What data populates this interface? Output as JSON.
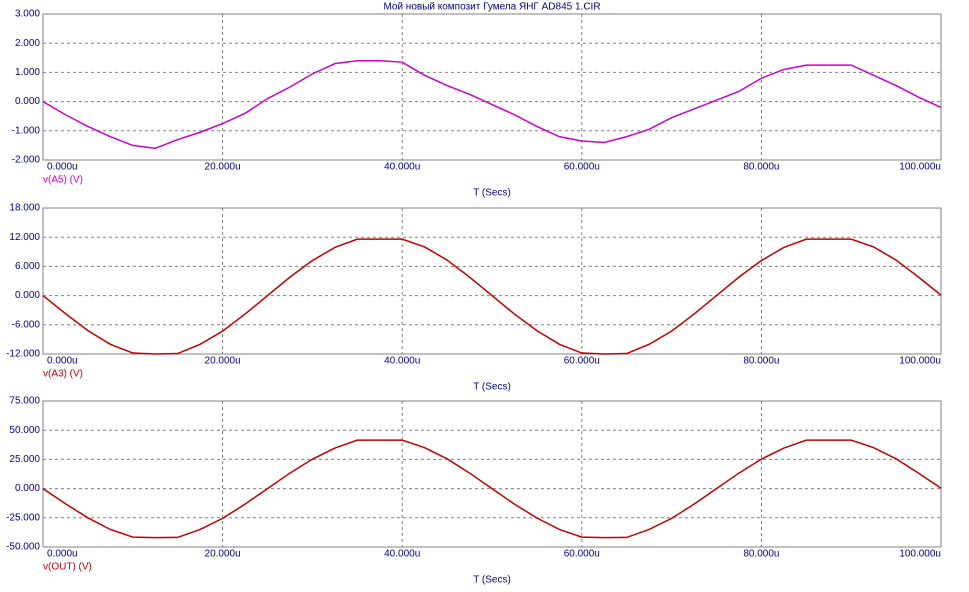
{
  "chart_data": [
    {
      "type": "line",
      "title": "Мой новый композит Гумела ЯНГ AD845 1.CIR",
      "xlabel": "T (Secs)",
      "x": [
        0,
        2.5,
        5,
        7.5,
        10,
        12.5,
        15,
        17.5,
        20,
        22.5,
        25,
        27.5,
        30,
        32.5,
        35,
        37.5,
        40,
        42.5,
        45,
        47.5,
        50,
        52.5,
        55,
        57.5,
        60,
        62.5,
        65,
        67.5,
        70,
        72.5,
        75,
        77.5,
        80,
        82.5,
        85,
        87.5,
        90,
        92.5,
        95,
        97.5,
        100
      ],
      "series": [
        {
          "name": "v(A5) (V)",
          "color": "#cc00cc",
          "values": [
            0,
            -0.45,
            -0.85,
            -1.2,
            -1.5,
            -1.6,
            -1.3,
            -1.05,
            -0.75,
            -0.4,
            0.1,
            0.5,
            0.95,
            1.3,
            1.4,
            1.4,
            1.35,
            0.9,
            0.55,
            0.25,
            -0.1,
            -0.45,
            -0.85,
            -1.2,
            -1.35,
            -1.4,
            -1.2,
            -0.95,
            -0.55,
            -0.25,
            0.05,
            0.35,
            0.8,
            1.1,
            1.25,
            1.25,
            1.25,
            0.9,
            0.55,
            0.15,
            -0.2
          ]
        }
      ],
      "xlim": [
        0,
        100
      ],
      "ylim": [
        -2,
        3
      ],
      "xticks": [
        {
          "value": 0,
          "label": "0.000u"
        },
        {
          "value": 20,
          "label": "20.000u"
        },
        {
          "value": 40,
          "label": "40.000u"
        },
        {
          "value": 60,
          "label": "60.000u"
        },
        {
          "value": 80,
          "label": "80.000u"
        },
        {
          "value": 100,
          "label": "100.000u"
        }
      ],
      "yticks": [
        {
          "value": 3,
          "label": "3.000"
        },
        {
          "value": 2,
          "label": "2.000"
        },
        {
          "value": 1,
          "label": "1.000"
        },
        {
          "value": 0,
          "label": "0.000"
        },
        {
          "value": -1,
          "label": "-1.000"
        },
        {
          "value": -2,
          "label": "-2.000"
        }
      ],
      "grid": true
    },
    {
      "type": "line",
      "xlabel": "T (Secs)",
      "x": [
        0,
        2.5,
        5,
        7.5,
        10,
        12.5,
        15,
        17.5,
        20,
        22.5,
        25,
        27.5,
        30,
        32.5,
        35,
        37.5,
        40,
        42.5,
        45,
        47.5,
        50,
        52.5,
        55,
        57.5,
        60,
        62.5,
        65,
        67.5,
        70,
        72.5,
        75,
        77.5,
        80,
        82.5,
        85,
        87.5,
        90,
        92.5,
        95,
        97.5,
        100
      ],
      "series": [
        {
          "name": "v(A3) (V)",
          "color": "#c00000",
          "values": [
            0,
            -3.7,
            -7.2,
            -10,
            -11.8,
            -12,
            -11.9,
            -10,
            -7.3,
            -3.8,
            0,
            3.8,
            7.2,
            9.9,
            11.6,
            11.6,
            11.6,
            10,
            7.3,
            3.8,
            0,
            -3.8,
            -7.2,
            -10,
            -11.8,
            -12,
            -11.9,
            -10,
            -7.3,
            -3.8,
            0,
            3.8,
            7.2,
            9.9,
            11.6,
            11.6,
            11.6,
            10,
            7.3,
            3.8,
            0.1
          ]
        }
      ],
      "xlim": [
        0,
        100
      ],
      "ylim": [
        -12,
        18
      ],
      "xticks": [
        {
          "value": 0,
          "label": "0.000u"
        },
        {
          "value": 20,
          "label": "20.000u"
        },
        {
          "value": 40,
          "label": "40.000u"
        },
        {
          "value": 60,
          "label": "60.000u"
        },
        {
          "value": 80,
          "label": "80.000u"
        },
        {
          "value": 100,
          "label": "100.000u"
        }
      ],
      "yticks": [
        {
          "value": 18,
          "label": "18.000"
        },
        {
          "value": 12,
          "label": "12.000"
        },
        {
          "value": 6,
          "label": "6.000"
        },
        {
          "value": 0,
          "label": "0.000"
        },
        {
          "value": -6,
          "label": "-6.000"
        },
        {
          "value": -12,
          "label": "-12.000"
        }
      ],
      "grid": true
    },
    {
      "type": "line",
      "xlabel": "T (Secs)",
      "x": [
        0,
        2.5,
        5,
        7.5,
        10,
        12.5,
        15,
        17.5,
        20,
        22.5,
        25,
        27.5,
        30,
        32.5,
        35,
        37.5,
        40,
        42.5,
        45,
        47.5,
        50,
        52.5,
        55,
        57.5,
        60,
        62.5,
        65,
        67.5,
        70,
        72.5,
        75,
        77.5,
        80,
        82.5,
        85,
        87.5,
        90,
        92.5,
        95,
        97.5,
        100
      ],
      "series": [
        {
          "name": "v(OUT) (V)",
          "color": "#c00000",
          "values": [
            0,
            -13,
            -25,
            -35,
            -41.5,
            -42,
            -41.8,
            -35,
            -25.5,
            -13.3,
            0,
            13.3,
            25.2,
            34.7,
            41.5,
            41.5,
            41.5,
            35,
            25.5,
            13.3,
            0,
            -13.3,
            -25.2,
            -35,
            -41.5,
            -42,
            -41.8,
            -35,
            -25.5,
            -13.3,
            0,
            13.3,
            25.2,
            34.7,
            41.5,
            41.5,
            41.5,
            35,
            25.5,
            13.3,
            0.3
          ]
        }
      ],
      "xlim": [
        0,
        100
      ],
      "ylim": [
        -50,
        75
      ],
      "xticks": [
        {
          "value": 0,
          "label": "0.000u"
        },
        {
          "value": 20,
          "label": "20.000u"
        },
        {
          "value": 40,
          "label": "40.000u"
        },
        {
          "value": 60,
          "label": "60.000u"
        },
        {
          "value": 80,
          "label": "80.000u"
        },
        {
          "value": 100,
          "label": "100.000u"
        }
      ],
      "yticks": [
        {
          "value": 75,
          "label": "75.000"
        },
        {
          "value": 50,
          "label": "50.000"
        },
        {
          "value": 25,
          "label": "25.000"
        },
        {
          "value": 0,
          "label": "0.000"
        },
        {
          "value": -25,
          "label": "-25.000"
        },
        {
          "value": -50,
          "label": "-50.000"
        }
      ],
      "grid": true
    }
  ]
}
